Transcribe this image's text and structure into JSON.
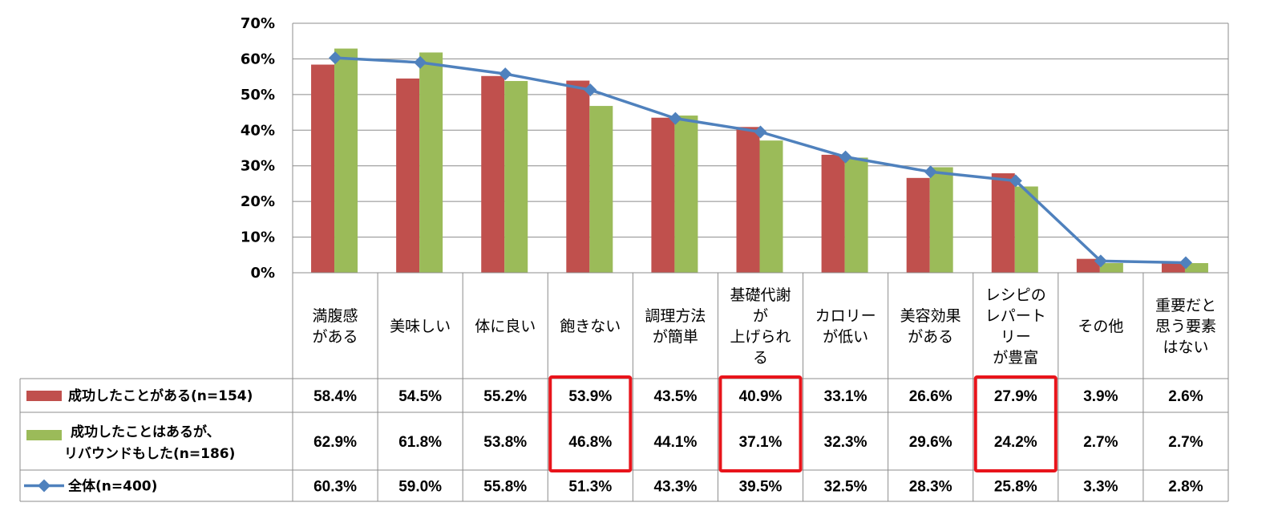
{
  "chart_data": {
    "type": "bar",
    "ylim": [
      0,
      70
    ],
    "y_ticks": [
      "0%",
      "10%",
      "20%",
      "30%",
      "40%",
      "50%",
      "60%",
      "70%"
    ],
    "categories": [
      [
        "満腹感",
        "がある"
      ],
      [
        "美味しい"
      ],
      [
        "体に良い"
      ],
      [
        "飽きない"
      ],
      [
        "調理方法",
        "が簡単"
      ],
      [
        "基礎代謝",
        "が",
        "上げられ",
        "る"
      ],
      [
        "カロリー",
        "が低い"
      ],
      [
        "美容効果",
        "がある"
      ],
      [
        "レシピの",
        "レパート",
        "リー",
        "が豊富"
      ],
      [
        "その他"
      ],
      [
        "重要だと",
        "思う要素",
        "はない"
      ]
    ],
    "series": [
      {
        "name": "成功したことがある(n=154)",
        "type": "bar",
        "color": "#c0504d",
        "values": [
          58.4,
          54.5,
          55.2,
          53.9,
          43.5,
          40.9,
          33.1,
          26.6,
          27.9,
          3.9,
          2.6
        ],
        "labels": [
          "58.4%",
          "54.5%",
          "55.2%",
          "53.9%",
          "43.5%",
          "40.9%",
          "33.1%",
          "26.6%",
          "27.9%",
          "3.9%",
          "2.6%"
        ]
      },
      {
        "name": "成功したことはあるが、",
        "name_line2": "リバウンドもした(n=186)",
        "type": "bar",
        "color": "#9bbb59",
        "values": [
          62.9,
          61.8,
          53.8,
          46.8,
          44.1,
          37.1,
          32.3,
          29.6,
          24.2,
          2.7,
          2.7
        ],
        "labels": [
          "62.9%",
          "61.8%",
          "53.8%",
          "46.8%",
          "44.1%",
          "37.1%",
          "32.3%",
          "29.6%",
          "24.2%",
          "2.7%",
          "2.7%"
        ]
      },
      {
        "name": "全体(n=400)",
        "type": "line",
        "color": "#4f81bd",
        "values": [
          60.3,
          59.0,
          55.8,
          51.3,
          43.3,
          39.5,
          32.5,
          28.3,
          25.8,
          3.3,
          2.8
        ],
        "labels": [
          "60.3%",
          "59.0%",
          "55.8%",
          "51.3%",
          "43.3%",
          "39.5%",
          "32.5%",
          "28.3%",
          "25.8%",
          "3.3%",
          "2.8%"
        ]
      }
    ],
    "highlighted_categories": [
      3,
      5,
      8
    ],
    "highlight_color": "#e8141b",
    "grid": true
  }
}
